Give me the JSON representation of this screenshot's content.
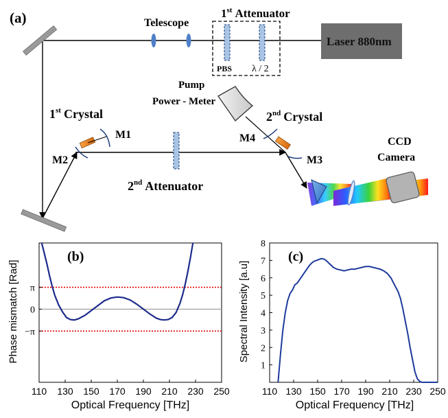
{
  "panel_a": {
    "label": "(a)",
    "telescope": "Telescope",
    "attenuator1_num": "1",
    "attenuator1_sup": "st",
    "attenuator1_word": "Attenuator",
    "pbs": "PBS",
    "halfwave": "λ / 2",
    "laser": "Laser 880nm",
    "pump": "Pump",
    "power_meter": "Power - Meter",
    "crystal1_num": "1",
    "crystal1_sup": "st",
    "crystal1_word": "Crystal",
    "crystal2_num": "2",
    "crystal2_sup": "nd",
    "crystal2_word": "Crystal",
    "m1": "M1",
    "m2": "M2",
    "m3": "M3",
    "m4": "M4",
    "attenuator2_num": "2",
    "attenuator2_sup": "nd",
    "attenuator2_word": "Attenuator",
    "ccd": "CCD",
    "camera": "Camera"
  },
  "chart_data": [
    {
      "type": "line",
      "panel_label": "(b)",
      "xlabel": "Optical Frequency [THz]",
      "ylabel": "Phase mismatch [Rad]",
      "xticks": [
        "110",
        "130",
        "150",
        "170",
        "190",
        "210",
        "230",
        "250"
      ],
      "yticks": [
        "π",
        "0",
        "−π"
      ],
      "xlim": [
        110,
        250
      ],
      "ylim": [
        -10.5,
        9.5
      ],
      "reference_lines": [
        3.1416,
        0,
        -3.1416
      ],
      "colors": {
        "curve": "#1c2a8c",
        "reference": "#e00000",
        "zero": "#9a9a9a"
      },
      "series": [
        {
          "x": [
            112,
            114,
            116,
            118,
            120,
            122,
            125,
            128,
            131,
            134,
            137,
            140,
            145,
            150,
            155,
            160,
            165,
            170,
            175,
            180,
            185,
            190,
            195,
            200,
            203,
            206,
            209,
            212,
            215,
            218,
            220,
            222,
            224,
            226,
            228
          ],
          "y": [
            9.5,
            8.0,
            6.5,
            4.8,
            3.3,
            2.0,
            0.6,
            -0.4,
            -1.2,
            -1.5,
            -1.55,
            -1.4,
            -0.9,
            -0.2,
            0.5,
            1.2,
            1.6,
            1.75,
            1.65,
            1.3,
            0.7,
            0.0,
            -0.7,
            -1.3,
            -1.5,
            -1.55,
            -1.5,
            -1.2,
            -0.5,
            0.8,
            2.0,
            3.5,
            5.3,
            7.3,
            9.5
          ]
        }
      ]
    },
    {
      "type": "line",
      "panel_label": "(c)",
      "xlabel": "Optical Frequency [THz]",
      "ylabel": "Spectral Intensity [a.u]",
      "xticks": [
        "110",
        "130",
        "150",
        "170",
        "190",
        "210",
        "230",
        "250"
      ],
      "yticks": [
        "1",
        "2",
        "3",
        "4",
        "5",
        "6",
        "7",
        "8"
      ],
      "xlim": [
        110,
        250
      ],
      "ylim": [
        0,
        8
      ],
      "colors": {
        "curve": "#1c3a9c"
      },
      "series": [
        {
          "x": [
            117,
            119,
            121,
            123,
            125,
            127,
            129,
            131,
            133,
            135,
            137,
            139,
            141,
            143,
            145,
            147,
            149,
            151,
            153,
            155,
            157,
            160,
            163,
            166,
            169,
            172,
            175,
            178,
            181,
            184,
            187,
            190,
            193,
            196,
            199,
            202,
            205,
            208,
            211,
            214,
            217,
            219,
            221,
            223,
            225,
            227,
            229,
            231,
            233,
            235,
            237,
            240,
            245,
            250
          ],
          "y": [
            0,
            1.6,
            3.0,
            4.0,
            4.7,
            5.1,
            5.3,
            5.6,
            5.7,
            5.9,
            6.1,
            6.3,
            6.5,
            6.7,
            6.85,
            6.95,
            7.0,
            7.05,
            7.1,
            7.08,
            7.0,
            6.8,
            6.6,
            6.5,
            6.45,
            6.4,
            6.45,
            6.5,
            6.5,
            6.55,
            6.6,
            6.65,
            6.65,
            6.6,
            6.55,
            6.5,
            6.4,
            6.25,
            6.0,
            5.6,
            5.2,
            4.8,
            4.2,
            3.5,
            2.8,
            2.0,
            1.3,
            0.6,
            0.2,
            0.05,
            0,
            0,
            0,
            0
          ]
        }
      ]
    }
  ]
}
